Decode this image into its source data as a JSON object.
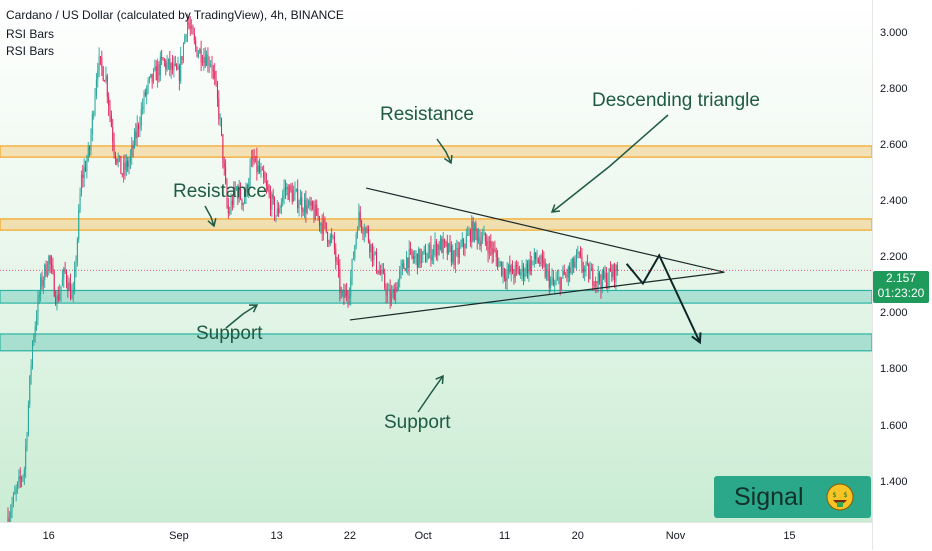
{
  "header": {
    "title": "Cardano / US Dollar (calculated by TradingView), 4h, BINANCE",
    "indicators": [
      "RSI Bars",
      "RSI Bars"
    ]
  },
  "current_price": {
    "value": "2.157",
    "countdown": "01:23:20"
  },
  "signal_label": "Signal",
  "annotations": {
    "resistance_upper": "Resistance",
    "resistance_lower": "Resistance",
    "descending_triangle": "Descending triangle",
    "support_left": "Support",
    "support_bottom": "Support"
  },
  "colors": {
    "up": "#26a69a",
    "down": "#e0245e",
    "resistance_zone": "#f5a623",
    "support_zone": "#2bb3a3",
    "badge": "#1e9a5a"
  },
  "chart_data": {
    "type": "candlestick",
    "title": "Cardano / US Dollar (calculated by TradingView), 4h, BINANCE",
    "y_axis": {
      "ticks": [
        "3.000",
        "2.800",
        "2.600",
        "2.400",
        "2.200",
        "2.000",
        "1.800",
        "1.600",
        "1.400"
      ],
      "range": [
        1.26,
        3.12
      ],
      "position": "right"
    },
    "x_axis": {
      "ticks": [
        "16",
        "Sep",
        "13",
        "22",
        "Oct",
        "11",
        "20",
        "Nov",
        "15"
      ]
    },
    "price_path": [
      {
        "date": "Aug 11",
        "price": 1.28
      },
      {
        "date": "Aug 13",
        "price": 1.45
      },
      {
        "date": "Aug 14",
        "price": 1.9
      },
      {
        "date": "Aug 15",
        "price": 2.1
      },
      {
        "date": "Aug 16",
        "price": 2.2
      },
      {
        "date": "Aug 17",
        "price": 2.05
      },
      {
        "date": "Aug 18",
        "price": 2.15
      },
      {
        "date": "Aug 19",
        "price": 2.05
      },
      {
        "date": "Aug 20",
        "price": 2.48
      },
      {
        "date": "Aug 21",
        "price": 2.58
      },
      {
        "date": "Aug 22",
        "price": 2.9
      },
      {
        "date": "Aug 23",
        "price": 2.85
      },
      {
        "date": "Aug 24",
        "price": 2.6
      },
      {
        "date": "Aug 25",
        "price": 2.5
      },
      {
        "date": "Aug 26",
        "price": 2.55
      },
      {
        "date": "Aug 28",
        "price": 2.8
      },
      {
        "date": "Aug 30",
        "price": 2.9
      },
      {
        "date": "Sep 1",
        "price": 2.85
      },
      {
        "date": "Sep 2",
        "price": 3.05
      },
      {
        "date": "Sep 3",
        "price": 2.95
      },
      {
        "date": "Sep 5",
        "price": 2.9
      },
      {
        "date": "Sep 6",
        "price": 2.7
      },
      {
        "date": "Sep 7",
        "price": 2.35
      },
      {
        "date": "Sep 8",
        "price": 2.45
      },
      {
        "date": "Sep 9",
        "price": 2.4
      },
      {
        "date": "Sep 10",
        "price": 2.55
      },
      {
        "date": "Sep 11",
        "price": 2.5
      },
      {
        "date": "Sep 13",
        "price": 2.35
      },
      {
        "date": "Sep 14",
        "price": 2.45
      },
      {
        "date": "Sep 16",
        "price": 2.4
      },
      {
        "date": "Sep 18",
        "price": 2.35
      },
      {
        "date": "Sep 20",
        "price": 2.25
      },
      {
        "date": "Sep 21",
        "price": 2.05
      },
      {
        "date": "Sep 22",
        "price": 2.1
      },
      {
        "date": "Sep 23",
        "price": 2.35
      },
      {
        "date": "Sep 24",
        "price": 2.3
      },
      {
        "date": "Sep 25",
        "price": 2.2
      },
      {
        "date": "Sep 27",
        "price": 2.05
      },
      {
        "date": "Sep 29",
        "price": 2.2
      },
      {
        "date": "Oct 1",
        "price": 2.2
      },
      {
        "date": "Oct 3",
        "price": 2.25
      },
      {
        "date": "Oct 5",
        "price": 2.2
      },
      {
        "date": "Oct 7",
        "price": 2.3
      },
      {
        "date": "Oct 9",
        "price": 2.25
      },
      {
        "date": "Oct 11",
        "price": 2.15
      },
      {
        "date": "Oct 13",
        "price": 2.15
      },
      {
        "date": "Oct 15",
        "price": 2.2
      },
      {
        "date": "Oct 17",
        "price": 2.1
      },
      {
        "date": "Oct 19",
        "price": 2.15
      },
      {
        "date": "Oct 20",
        "price": 2.2
      },
      {
        "date": "Oct 21",
        "price": 2.15
      },
      {
        "date": "Oct 23",
        "price": 2.12
      },
      {
        "date": "Oct 25",
        "price": 2.16
      }
    ],
    "horizontal_zones": [
      {
        "label": "Resistance",
        "low": 2.56,
        "high": 2.6
      },
      {
        "label": "Resistance",
        "low": 2.3,
        "high": 2.34
      },
      {
        "label": "Support",
        "low": 2.04,
        "high": 2.085
      },
      {
        "label": "Support",
        "low": 1.87,
        "high": 1.93
      }
    ],
    "trendlines": [
      {
        "name": "Descending triangle upper",
        "from": {
          "date": "Sep 24",
          "price": 2.45
        },
        "to": {
          "date": "Nov 7",
          "price": 2.15
        }
      },
      {
        "name": "Descending triangle lower",
        "from": {
          "date": "Sep 22",
          "price": 1.98
        },
        "to": {
          "date": "Nov 7",
          "price": 2.15
        }
      }
    ],
    "projection": [
      {
        "date": "Oct 26",
        "price": 2.18
      },
      {
        "date": "Oct 28",
        "price": 2.11
      },
      {
        "date": "Oct 30",
        "price": 2.21
      },
      {
        "date": "Nov 4",
        "price": 1.9
      }
    ],
    "last_price": 2.157
  }
}
